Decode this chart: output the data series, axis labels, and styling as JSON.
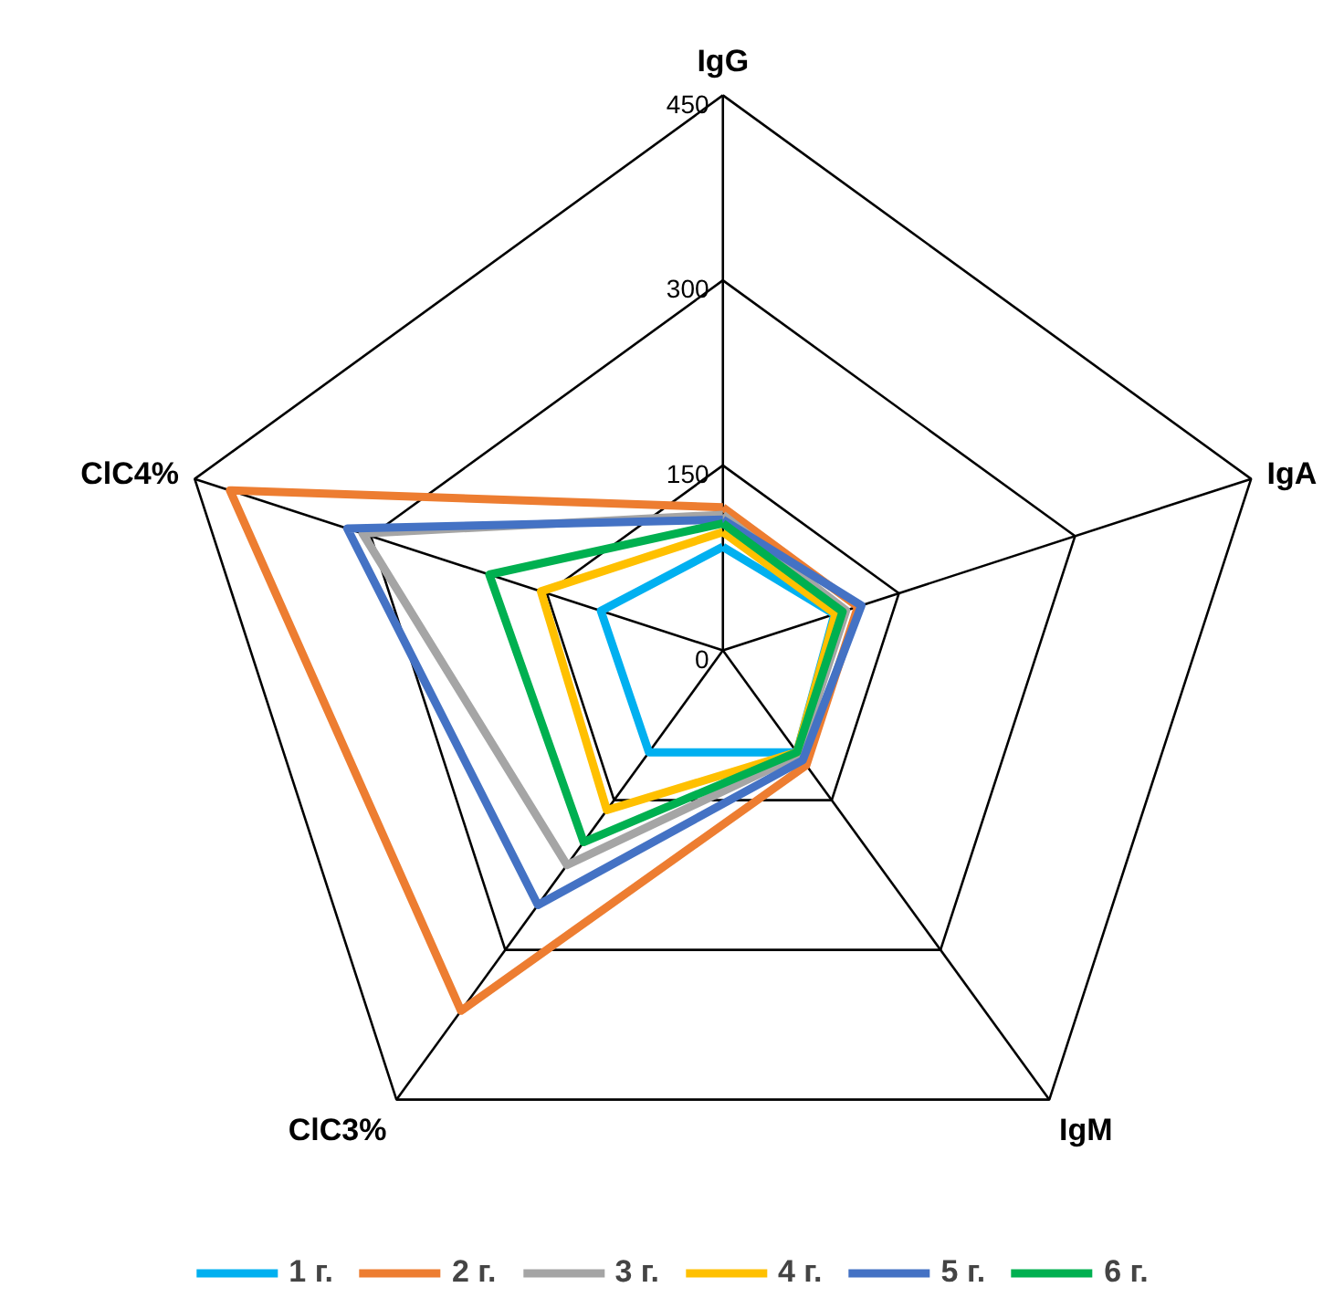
{
  "chart_data": {
    "type": "radar",
    "categories": [
      "IgG",
      "IgA",
      "IgM",
      "ClC3%",
      "ClC4%"
    ],
    "ylim": [
      0,
      450
    ],
    "yticks": [
      0,
      150,
      300,
      450
    ],
    "legend": "bottom",
    "grid": true,
    "series": [
      {
        "name": "1 г.",
        "color": "#00b0f0",
        "values": [
          84,
          95,
          102,
          102,
          104
        ]
      },
      {
        "name": "2 г.",
        "color": "#ed7d31",
        "values": [
          116,
          115,
          115,
          361,
          420
        ]
      },
      {
        "name": "3 г.",
        "color": "#a5a5a5",
        "values": [
          110,
          105,
          105,
          215,
          307
        ]
      },
      {
        "name": "4 г.",
        "color": "#ffc000",
        "values": [
          96,
          96,
          102,
          160,
          155
        ]
      },
      {
        "name": "5 г.",
        "color": "#4472c4",
        "values": [
          106,
          118,
          110,
          255,
          320
        ]
      },
      {
        "name": "6 г.",
        "color": "#00b050",
        "values": [
          103,
          102,
          102,
          192,
          199
        ]
      }
    ]
  }
}
